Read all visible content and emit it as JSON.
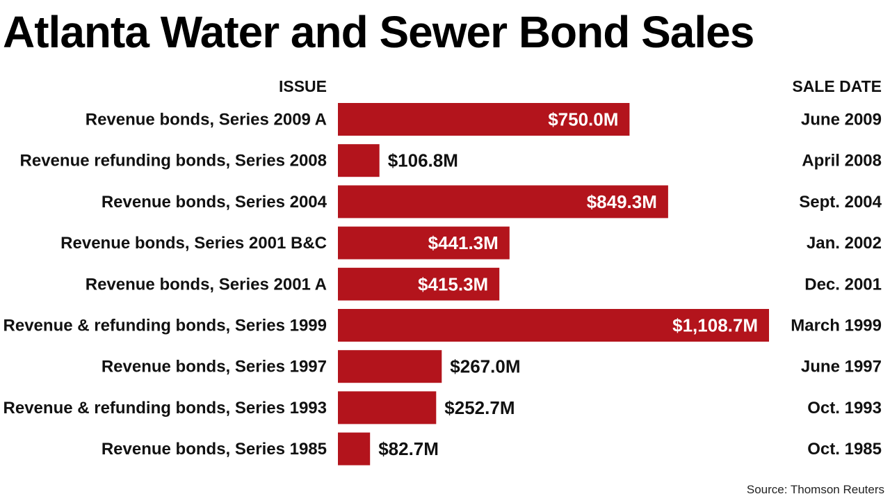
{
  "chart_data": {
    "type": "bar",
    "orientation": "horizontal",
    "title": "Atlanta Water and Sewer Bond Sales",
    "category_header": "ISSUE",
    "date_header": "SALE DATE",
    "unit": "$M",
    "categories": [
      "Revenue bonds, Series 2009 A",
      "Revenue refunding bonds, Series 2008",
      "Revenue bonds, Series 2004",
      "Revenue bonds, Series 2001 B&C",
      "Revenue bonds, Series 2001 A",
      "Revenue & refunding bonds, Series 1999",
      "Revenue bonds, Series 1997",
      "Revenue & refunding bonds, Series 1993",
      "Revenue bonds, Series 1985"
    ],
    "values": [
      750.0,
      106.8,
      849.3,
      441.3,
      415.3,
      1108.7,
      267.0,
      252.7,
      82.7
    ],
    "value_labels": [
      "$750.0M",
      "$106.8M",
      "$849.3M",
      "$441.3M",
      "$415.3M",
      "$1,108.7M",
      "$267.0M",
      "$252.7M",
      "$82.7M"
    ],
    "sale_dates": [
      "June 2009",
      "April 2008",
      "Sept. 2004",
      "Jan. 2002",
      "Dec. 2001",
      "March 1999",
      "June 1997",
      "Oct. 1993",
      "Oct. 1985"
    ],
    "xlim": [
      0,
      1108.7
    ],
    "bar_color": "#b3141c",
    "source": "Source: Thomson Reuters"
  }
}
